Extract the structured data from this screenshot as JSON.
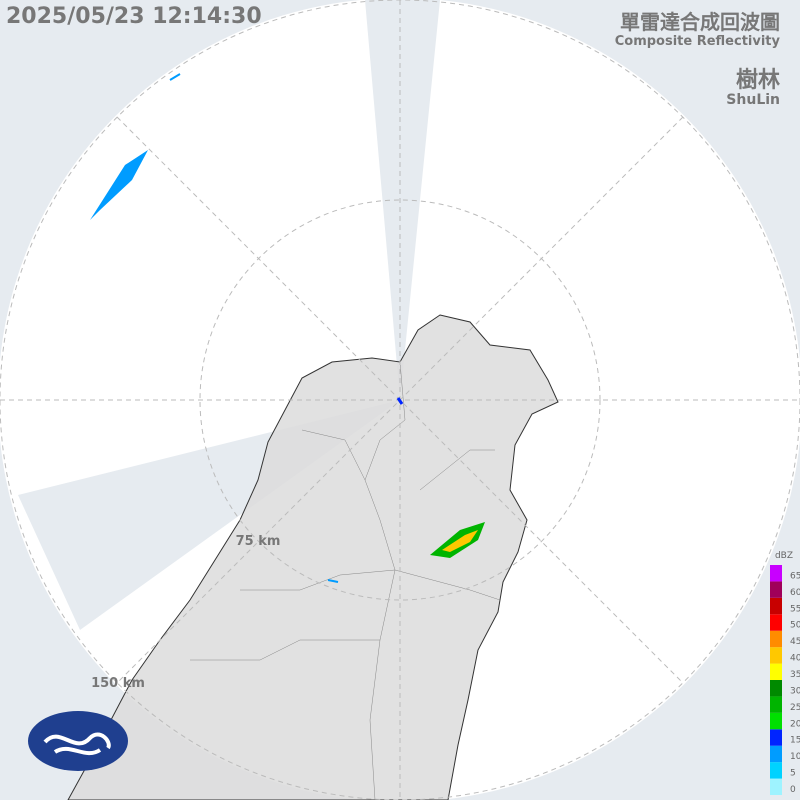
{
  "header": {
    "timestamp": "2025/05/23 12:14:30",
    "title_zh": "單雷達合成回波圖",
    "title_en": "Composite Reflectivity",
    "station_zh": "樹林",
    "station_en": "ShuLin"
  },
  "rings": [
    "75 km",
    "150 km"
  ],
  "scale": {
    "unit": "dBZ",
    "ticks": [
      0,
      5,
      10,
      15,
      20,
      25,
      30,
      35,
      40,
      45,
      50,
      55,
      60,
      65
    ],
    "colors": [
      "#9ef3ff",
      "#00d2ff",
      "#009cff",
      "#0024ff",
      "#00e000",
      "#00b400",
      "#008a00",
      "#ffff00",
      "#ffc800",
      "#ff8c00",
      "#ff0000",
      "#c80000",
      "#a0005a",
      "#c800ff"
    ]
  }
}
